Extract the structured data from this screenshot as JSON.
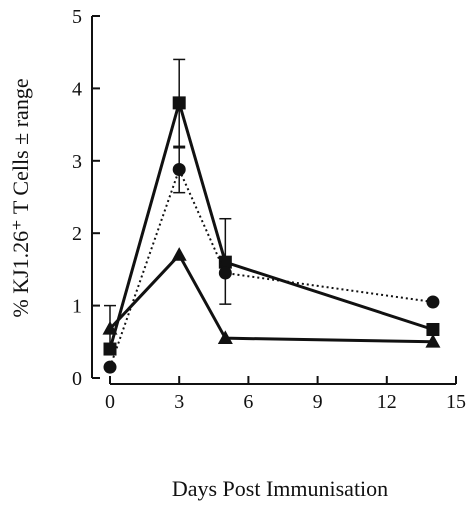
{
  "chart_data": {
    "type": "line",
    "xlabel": "Days Post Immunisation",
    "ylabel": "% KJ1.26⁺ T Cells ± range",
    "xlim": [
      0,
      15
    ],
    "ylim": [
      0,
      5
    ],
    "xticks": [
      0,
      3,
      6,
      9,
      12,
      15
    ],
    "yticks": [
      0,
      1,
      2,
      3,
      4,
      5
    ],
    "grid": false,
    "legend": "none",
    "series": [
      {
        "marker": "square",
        "line_style": "solid",
        "x": [
          0,
          3,
          5,
          14
        ],
        "y": [
          0.4,
          3.8,
          1.6,
          0.67
        ],
        "error_upper": [
          0.6,
          0.6,
          0.6,
          null
        ],
        "error_lower": [
          null,
          0.6,
          0.58,
          null
        ]
      },
      {
        "marker": "circle",
        "line_style": "dotted",
        "x": [
          0,
          3,
          5,
          14
        ],
        "y": [
          0.15,
          2.88,
          1.45,
          1.05
        ],
        "error_upper": [
          null,
          0.3,
          null,
          null
        ],
        "error_lower": [
          null,
          0.32,
          null,
          null
        ]
      },
      {
        "marker": "triangle",
        "line_style": "solid",
        "x": [
          0,
          3,
          5,
          14
        ],
        "y": [
          0.68,
          1.7,
          0.55,
          0.5
        ],
        "error_upper": [
          null,
          null,
          null,
          null
        ],
        "error_lower": [
          null,
          null,
          null,
          null
        ]
      }
    ]
  }
}
